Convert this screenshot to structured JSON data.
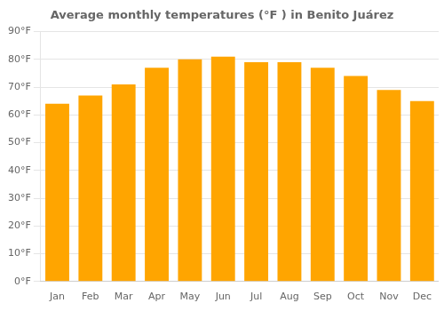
{
  "chart_data": {
    "type": "bar",
    "title": "Average monthly temperatures (°F ) in Benito Juárez",
    "categories": [
      "Jan",
      "Feb",
      "Mar",
      "Apr",
      "May",
      "Jun",
      "Jul",
      "Aug",
      "Sep",
      "Oct",
      "Nov",
      "Dec"
    ],
    "values": [
      64,
      67,
      71,
      77,
      80,
      81,
      79,
      79,
      77,
      74,
      69,
      65
    ],
    "color": "#FFA500",
    "ylim": [
      0,
      90
    ],
    "yticks": [
      {
        "value": 0,
        "label": "0°F"
      },
      {
        "value": 10,
        "label": "10°F"
      },
      {
        "value": 20,
        "label": "20°F"
      },
      {
        "value": 30,
        "label": "30°F"
      },
      {
        "value": 40,
        "label": "40°F"
      },
      {
        "value": 50,
        "label": "50°F"
      },
      {
        "value": 60,
        "label": "60°F"
      },
      {
        "value": 70,
        "label": "70°F"
      },
      {
        "value": 80,
        "label": "80°F"
      },
      {
        "value": 90,
        "label": "90°F"
      }
    ],
    "grid": true
  }
}
